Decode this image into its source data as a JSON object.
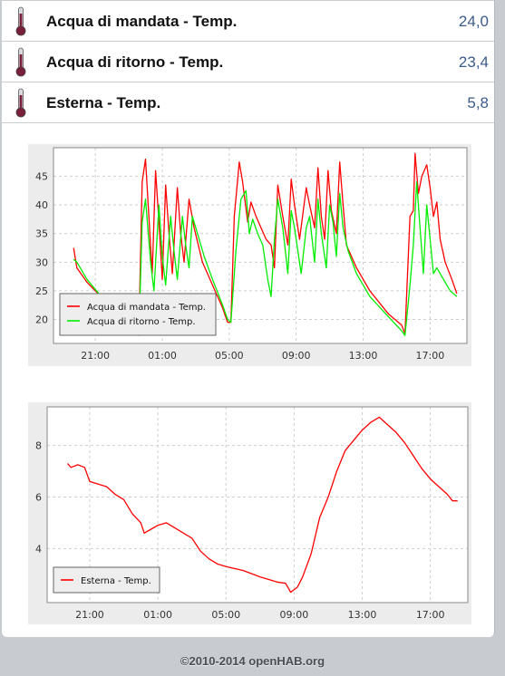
{
  "items": [
    {
      "label": "Acqua di mandata - Temp.",
      "value": "24,0",
      "icon": "thermometer-icon"
    },
    {
      "label": "Acqua di ritorno - Temp.",
      "value": "23,4",
      "icon": "thermometer-icon"
    },
    {
      "label": "Esterna - Temp.",
      "value": "5,8",
      "icon": "thermometer-icon"
    }
  ],
  "footer": "©2010-2014 openHAB.org",
  "chart_data": [
    {
      "type": "line",
      "title": "",
      "x_ticks": [
        "21:00",
        "01:00",
        "05:00",
        "09:00",
        "13:00",
        "17:00"
      ],
      "y_ticks": [
        20,
        25,
        30,
        35,
        40,
        45
      ],
      "xlim_hours": [
        18.5,
        43.2
      ],
      "ylim": [
        15.8,
        50
      ],
      "grid": true,
      "legend_position": "bottom-left",
      "series": [
        {
          "name": "Acqua di mandata - Temp.",
          "color": "#ff0000",
          "points": [
            [
              19.7,
              32.5
            ],
            [
              19.9,
              29
            ],
            [
              20.5,
              26.5
            ],
            [
              21.5,
              23.5
            ],
            [
              22.5,
              21
            ],
            [
              23,
              19.5
            ],
            [
              23.5,
              18
            ],
            [
              23.6,
              18
            ],
            [
              23.8,
              44
            ],
            [
              24.0,
              48
            ],
            [
              24.2,
              38
            ],
            [
              24.4,
              28
            ],
            [
              24.6,
              46
            ],
            [
              24.8,
              37
            ],
            [
              25.0,
              27
            ],
            [
              25.2,
              43.5
            ],
            [
              25.4,
              35
            ],
            [
              25.6,
              28
            ],
            [
              25.9,
              43
            ],
            [
              26.1,
              35
            ],
            [
              26.3,
              30
            ],
            [
              26.6,
              41
            ],
            [
              26.9,
              36
            ],
            [
              27.4,
              30
            ],
            [
              28.0,
              26
            ],
            [
              28.6,
              22
            ],
            [
              28.9,
              19.5
            ],
            [
              29.1,
              19.5
            ],
            [
              29.3,
              38
            ],
            [
              29.6,
              47.5
            ],
            [
              29.8,
              44
            ],
            [
              30.1,
              37
            ],
            [
              30.3,
              40.5
            ],
            [
              30.6,
              38
            ],
            [
              30.9,
              36
            ],
            [
              31.2,
              34
            ],
            [
              31.5,
              33
            ],
            [
              31.7,
              29
            ],
            [
              31.9,
              43.5
            ],
            [
              32.2,
              38
            ],
            [
              32.5,
              33
            ],
            [
              32.7,
              44.5
            ],
            [
              32.9,
              40
            ],
            [
              33.2,
              34
            ],
            [
              33.6,
              43
            ],
            [
              33.8,
              40
            ],
            [
              34.1,
              36
            ],
            [
              34.3,
              46.5
            ],
            [
              34.5,
              38
            ],
            [
              34.7,
              34
            ],
            [
              34.9,
              46
            ],
            [
              35.1,
              39
            ],
            [
              35.4,
              35
            ],
            [
              35.6,
              47.5
            ],
            [
              35.8,
              40
            ],
            [
              36.0,
              33
            ],
            [
              36.6,
              29
            ],
            [
              37.4,
              25
            ],
            [
              38.5,
              21
            ],
            [
              39.3,
              19
            ],
            [
              39.5,
              17.5
            ],
            [
              39.8,
              38
            ],
            [
              40.0,
              39
            ],
            [
              40.1,
              49
            ],
            [
              40.3,
              42
            ],
            [
              40.5,
              45
            ],
            [
              40.8,
              47
            ],
            [
              41.0,
              43
            ],
            [
              41.2,
              38
            ],
            [
              41.4,
              40.5
            ],
            [
              41.6,
              34
            ],
            [
              41.9,
              30
            ],
            [
              42.3,
              27
            ],
            [
              42.6,
              24.5
            ]
          ]
        },
        {
          "name": "Acqua di ritorno - Temp.",
          "color": "#00ee00",
          "points": [
            [
              19.7,
              30.5
            ],
            [
              19.9,
              30
            ],
            [
              20.5,
              27
            ],
            [
              21.5,
              23.5
            ],
            [
              22.5,
              20.5
            ],
            [
              23,
              19
            ],
            [
              23.5,
              17.5
            ],
            [
              23.6,
              17.2
            ],
            [
              23.8,
              37
            ],
            [
              24.0,
              41
            ],
            [
              24.3,
              30
            ],
            [
              24.5,
              25
            ],
            [
              24.8,
              40
            ],
            [
              25.0,
              31
            ],
            [
              25.2,
              26
            ],
            [
              25.5,
              38
            ],
            [
              25.7,
              32
            ],
            [
              25.9,
              27
            ],
            [
              26.2,
              38
            ],
            [
              26.4,
              33
            ],
            [
              26.6,
              29
            ],
            [
              26.8,
              38
            ],
            [
              27.1,
              35
            ],
            [
              27.5,
              31
            ],
            [
              28.0,
              27
            ],
            [
              28.6,
              22.5
            ],
            [
              28.9,
              20
            ],
            [
              29.1,
              19.5
            ],
            [
              29.4,
              32
            ],
            [
              29.7,
              41
            ],
            [
              30.0,
              42.5
            ],
            [
              30.2,
              35
            ],
            [
              30.4,
              37.5
            ],
            [
              30.7,
              35
            ],
            [
              31.0,
              33
            ],
            [
              31.3,
              27
            ],
            [
              31.5,
              24
            ],
            [
              31.7,
              34
            ],
            [
              31.9,
              41
            ],
            [
              32.2,
              36
            ],
            [
              32.5,
              28
            ],
            [
              32.7,
              39
            ],
            [
              32.9,
              36
            ],
            [
              33.3,
              28
            ],
            [
              33.6,
              36
            ],
            [
              33.8,
              38
            ],
            [
              34.1,
              30
            ],
            [
              34.3,
              41
            ],
            [
              34.5,
              35
            ],
            [
              34.8,
              29
            ],
            [
              35.0,
              40
            ],
            [
              35.2,
              37
            ],
            [
              35.4,
              31
            ],
            [
              35.6,
              42
            ],
            [
              35.8,
              36
            ],
            [
              36.1,
              32
            ],
            [
              36.6,
              28
            ],
            [
              37.4,
              24
            ],
            [
              38.5,
              20.5
            ],
            [
              39.3,
              18
            ],
            [
              39.5,
              17.2
            ],
            [
              39.8,
              26
            ],
            [
              40.0,
              33
            ],
            [
              40.2,
              44
            ],
            [
              40.4,
              36
            ],
            [
              40.6,
              28
            ],
            [
              40.8,
              40
            ],
            [
              41.0,
              34
            ],
            [
              41.2,
              28
            ],
            [
              41.4,
              29
            ],
            [
              41.7,
              27.5
            ],
            [
              42.2,
              25
            ],
            [
              42.6,
              24
            ]
          ]
        }
      ]
    },
    {
      "type": "line",
      "title": "",
      "x_ticks": [
        "21:00",
        "01:00",
        "05:00",
        "09:00",
        "13:00",
        "17:00"
      ],
      "y_ticks": [
        4,
        6,
        8
      ],
      "xlim_hours": [
        18.5,
        43.2
      ],
      "ylim": [
        1.9,
        9.5
      ],
      "grid": true,
      "legend_position": "bottom-left",
      "series": [
        {
          "name": "Esterna - Temp.",
          "color": "#ff0000",
          "points": [
            [
              19.7,
              7.3
            ],
            [
              19.9,
              7.15
            ],
            [
              20.3,
              7.25
            ],
            [
              20.7,
              7.15
            ],
            [
              21.0,
              6.6
            ],
            [
              21.5,
              6.5
            ],
            [
              22.0,
              6.4
            ],
            [
              22.5,
              6.1
            ],
            [
              23.0,
              5.9
            ],
            [
              23.5,
              5.35
            ],
            [
              24.0,
              5.0
            ],
            [
              24.2,
              4.6
            ],
            [
              24.6,
              4.75
            ],
            [
              25.0,
              4.9
            ],
            [
              25.5,
              5.0
            ],
            [
              26.0,
              4.8
            ],
            [
              26.5,
              4.6
            ],
            [
              27.0,
              4.4
            ],
            [
              27.5,
              3.9
            ],
            [
              28.0,
              3.6
            ],
            [
              28.5,
              3.4
            ],
            [
              29.0,
              3.3
            ],
            [
              30.0,
              3.15
            ],
            [
              31.0,
              2.9
            ],
            [
              32.0,
              2.7
            ],
            [
              32.5,
              2.65
            ],
            [
              32.8,
              2.3
            ],
            [
              33.2,
              2.5
            ],
            [
              33.5,
              2.9
            ],
            [
              34.0,
              3.8
            ],
            [
              34.5,
              5.2
            ],
            [
              35.0,
              6.0
            ],
            [
              35.5,
              7.0
            ],
            [
              36.0,
              7.8
            ],
            [
              37.0,
              8.6
            ],
            [
              37.5,
              8.9
            ],
            [
              38.0,
              9.1
            ],
            [
              38.5,
              8.8
            ],
            [
              39.0,
              8.5
            ],
            [
              39.5,
              8.1
            ],
            [
              40.0,
              7.6
            ],
            [
              40.5,
              7.1
            ],
            [
              41.0,
              6.7
            ],
            [
              41.5,
              6.4
            ],
            [
              42.0,
              6.1
            ],
            [
              42.3,
              5.85
            ],
            [
              42.6,
              5.85
            ]
          ]
        }
      ]
    }
  ]
}
